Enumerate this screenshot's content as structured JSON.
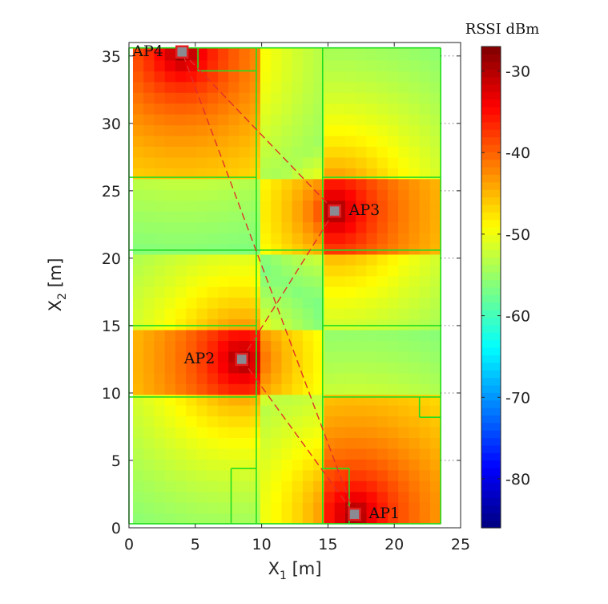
{
  "chart_data": {
    "type": "heatmap",
    "xlabel_main": "X",
    "xlabel_sub": "1",
    "xlabel_unit": " [m]",
    "ylabel_main": "X",
    "ylabel_sub": "2",
    "ylabel_unit": " [m]",
    "xlim": [
      0,
      25
    ],
    "ylim": [
      0,
      36
    ],
    "xticks": [
      0,
      5,
      10,
      15,
      20,
      25
    ],
    "yticks": [
      0,
      5,
      10,
      15,
      20,
      25,
      30,
      35
    ],
    "colorbar": {
      "title": "RSSI dBm",
      "range": [
        -86,
        -27
      ],
      "ticks": [
        -30,
        -40,
        -50,
        -60,
        -70,
        -80
      ],
      "colormap": "jet"
    },
    "access_points": [
      {
        "name": "AP1",
        "x": 17,
        "y": 1,
        "rssi_peak": -27
      },
      {
        "name": "AP2",
        "x": 8.5,
        "y": 12.5,
        "rssi_peak": -27
      },
      {
        "name": "AP3",
        "x": 15.5,
        "y": 23.5,
        "rssi_peak": -27
      },
      {
        "name": "AP4",
        "x": 4,
        "y": 35.3,
        "rssi_peak": -27
      }
    ],
    "route": {
      "color": "#e0302a",
      "style": "dashed",
      "order": [
        "AP4",
        "AP3",
        "AP2",
        "AP1",
        "AP4"
      ]
    },
    "walls": {
      "color": "#22dd22",
      "segments": [
        [
          [
            0,
            0.3
          ],
          [
            23.5,
            0.3
          ]
        ],
        [
          [
            0,
            0.3
          ],
          [
            0,
            35.6
          ]
        ],
        [
          [
            0,
            35.6
          ],
          [
            23.5,
            35.6
          ]
        ],
        [
          [
            23.5,
            0.3
          ],
          [
            23.5,
            35.6
          ]
        ],
        [
          [
            9.6,
            0.3
          ],
          [
            9.6,
            35.6
          ]
        ],
        [
          [
            14.6,
            0.3
          ],
          [
            14.6,
            35.6
          ]
        ],
        [
          [
            0,
            26
          ],
          [
            9.6,
            26
          ]
        ],
        [
          [
            14.6,
            26
          ],
          [
            23.5,
            26
          ]
        ],
        [
          [
            0,
            20.6
          ],
          [
            23.5,
            20.6
          ]
        ],
        [
          [
            0,
            15
          ],
          [
            9.6,
            15
          ]
        ],
        [
          [
            14.6,
            15
          ],
          [
            23.5,
            15
          ]
        ],
        [
          [
            0,
            9.7
          ],
          [
            9.6,
            9.7
          ]
        ],
        [
          [
            14.6,
            9.7
          ],
          [
            23.5,
            9.7
          ]
        ],
        [
          [
            7.7,
            0.3
          ],
          [
            7.7,
            4.4
          ]
        ],
        [
          [
            7.7,
            4.4
          ],
          [
            9.6,
            4.4
          ]
        ],
        [
          [
            14.6,
            4.4
          ],
          [
            16.6,
            4.4
          ]
        ],
        [
          [
            16.6,
            0.3
          ],
          [
            16.6,
            4.4
          ]
        ],
        [
          [
            5.2,
            33.9
          ],
          [
            9.6,
            33.9
          ]
        ],
        [
          [
            5.2,
            33.9
          ],
          [
            5.2,
            35.6
          ]
        ],
        [
          [
            21.9,
            8.2
          ],
          [
            23.5,
            8.2
          ]
        ],
        [
          [
            21.9,
            8.2
          ],
          [
            21.9,
            9.7
          ]
        ]
      ]
    }
  }
}
